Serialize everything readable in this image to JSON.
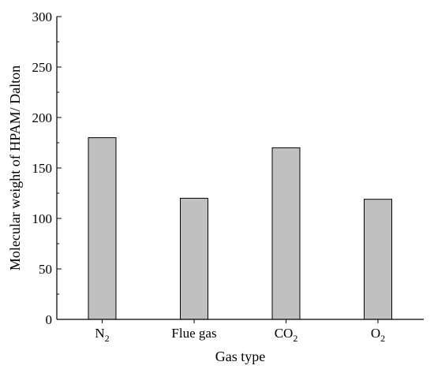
{
  "chart_data": {
    "type": "bar",
    "categories": [
      "N2",
      "Flue gas",
      "CO2",
      "O2"
    ],
    "category_labels": [
      {
        "base": "N",
        "sub": "2"
      },
      {
        "base": "Flue gas",
        "sub": ""
      },
      {
        "base": "CO",
        "sub": "2"
      },
      {
        "base": "O",
        "sub": "2"
      }
    ],
    "values": [
      180,
      120,
      170,
      119
    ],
    "title": "",
    "xlabel": "Gas type",
    "ylabel": "Molecular weight of HPAM/ Dalton",
    "ylim": [
      0,
      300
    ],
    "yticks": [
      "0",
      "50",
      "100",
      "150",
      "200",
      "250",
      "300"
    ],
    "grid": false,
    "bar_color": "#c0c0c0",
    "edge_color": "#000000"
  }
}
